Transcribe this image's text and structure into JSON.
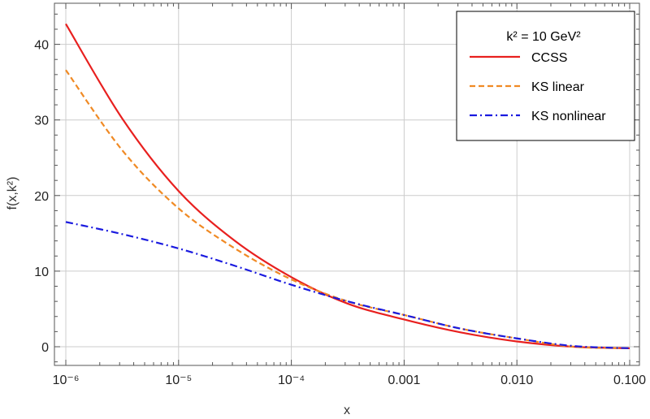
{
  "chart_data": {
    "type": "line",
    "xscale": "log",
    "xlabel": "x",
    "ylabel": "f(x,k²)",
    "xlim": [
      1e-06,
      0.1
    ],
    "ylim": [
      -2.5,
      45
    ],
    "xticks": [
      {
        "value": 1e-06,
        "label": "10⁻⁶"
      },
      {
        "value": 1e-05,
        "label": "10⁻⁵"
      },
      {
        "value": 0.0001,
        "label": "10⁻⁴"
      },
      {
        "value": 0.001,
        "label": "0.001"
      },
      {
        "value": 0.01,
        "label": "0.010"
      },
      {
        "value": 0.1,
        "label": "0.100"
      }
    ],
    "yticks": [
      0,
      10,
      20,
      30,
      40
    ],
    "grid": true,
    "legend": {
      "title": "k² = 10 GeV²",
      "position": "top-right"
    },
    "x": [
      1e-06,
      3.16e-06,
      1e-05,
      3.16e-05,
      0.0001,
      0.000316,
      0.001,
      0.00316,
      0.01,
      0.0316,
      0.1
    ],
    "series": [
      {
        "name": "CCSS",
        "color": "#e8201f",
        "style": "solid",
        "values": [
          42.7,
          30.2,
          20.6,
          14.0,
          9.2,
          5.7,
          3.6,
          1.9,
          0.7,
          0.0,
          -0.2
        ]
      },
      {
        "name": "KS linear",
        "color": "#f08a24",
        "style": "dashed",
        "values": [
          36.6,
          26.0,
          18.3,
          13.0,
          8.9,
          6.0,
          4.2,
          2.4,
          1.1,
          0.0,
          -0.2
        ]
      },
      {
        "name": "KS nonlinear",
        "color": "#1a1adf",
        "style": "dashdot",
        "values": [
          16.5,
          14.9,
          13.0,
          10.7,
          8.2,
          6.0,
          4.2,
          2.4,
          1.1,
          0.1,
          -0.2
        ]
      }
    ]
  }
}
